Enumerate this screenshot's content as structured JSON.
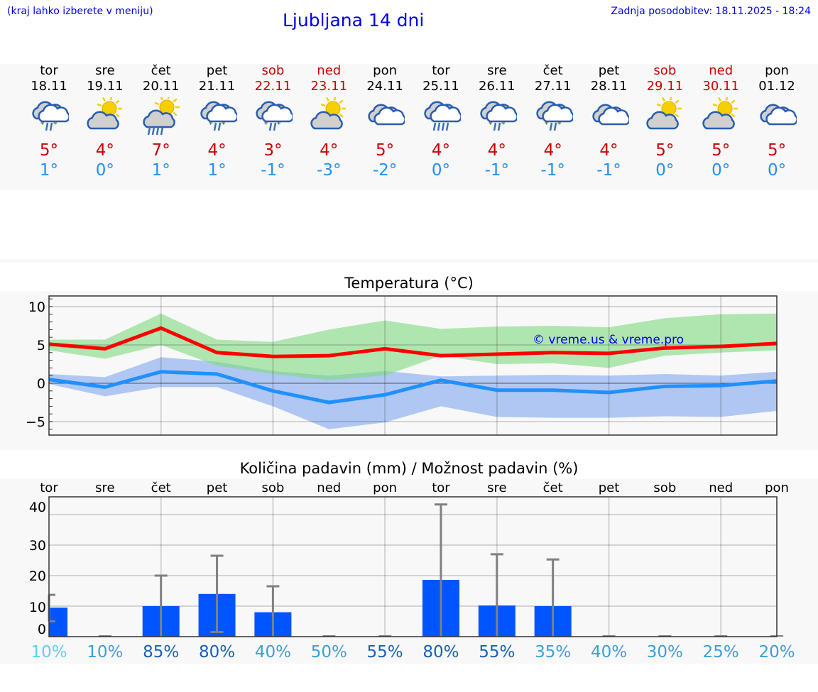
{
  "header": {
    "note": "(kraj lahko izberete v meniju)",
    "title": "Ljubljana 14 dni",
    "updated": "Zadnja posodobitev: 18.11.2025 - 18:24"
  },
  "days": [
    {
      "name": "tor",
      "date": "18.11",
      "icon": "cloud-rain-snow",
      "max": "5°",
      "min": "1°",
      "weekend": false
    },
    {
      "name": "sre",
      "date": "19.11",
      "icon": "partly-sunny",
      "max": "4°",
      "min": "0°",
      "weekend": false
    },
    {
      "name": "čet",
      "date": "20.11",
      "icon": "sun-rain",
      "max": "7°",
      "min": "1°",
      "weekend": false
    },
    {
      "name": "pet",
      "date": "21.11",
      "icon": "cloud-rain-snow",
      "max": "4°",
      "min": "1°",
      "weekend": false
    },
    {
      "name": "sob",
      "date": "22.11",
      "icon": "cloud-rain-snow",
      "max": "3°",
      "min": "-1°",
      "weekend": true
    },
    {
      "name": "ned",
      "date": "23.11",
      "icon": "partly-sunny",
      "max": "4°",
      "min": "-3°",
      "weekend": true
    },
    {
      "name": "pon",
      "date": "24.11",
      "icon": "cloudy",
      "max": "5°",
      "min": "-2°",
      "weekend": false
    },
    {
      "name": "tor",
      "date": "25.11",
      "icon": "cloud-rain",
      "max": "4°",
      "min": "0°",
      "weekend": false
    },
    {
      "name": "sre",
      "date": "26.11",
      "icon": "cloud-rain-snow",
      "max": "4°",
      "min": "-1°",
      "weekend": false
    },
    {
      "name": "čet",
      "date": "27.11",
      "icon": "cloud-rain-snow",
      "max": "4°",
      "min": "-1°",
      "weekend": false
    },
    {
      "name": "pet",
      "date": "28.11",
      "icon": "cloudy",
      "max": "4°",
      "min": "-1°",
      "weekend": false
    },
    {
      "name": "sob",
      "date": "29.11",
      "icon": "partly-sunny",
      "max": "5°",
      "min": "0°",
      "weekend": true
    },
    {
      "name": "ned",
      "date": "30.11",
      "icon": "partly-sunny",
      "max": "5°",
      "min": "0°",
      "weekend": true
    },
    {
      "name": "pon",
      "date": "01.12",
      "icon": "cloudy",
      "max": "5°",
      "min": "0°",
      "weekend": false
    }
  ],
  "chart_data": [
    {
      "type": "line",
      "title": "Temperatura (°C)",
      "ylim": [
        -7,
        11
      ],
      "yticks": [
        "10",
        "5",
        "0",
        "−5"
      ],
      "grid": true,
      "watermark": "© vreme.us & vreme.pro",
      "series": [
        {
          "role": "max",
          "color": "#ff0000",
          "values": [
            5.1,
            4.5,
            7.2,
            4.0,
            3.5,
            3.6,
            4.5,
            3.6,
            3.8,
            4.0,
            3.9,
            4.6,
            4.8,
            5.2
          ]
        },
        {
          "role": "min",
          "color": "#1e90ff",
          "values": [
            0.5,
            -0.5,
            1.5,
            1.2,
            -1.0,
            -2.5,
            -1.5,
            0.4,
            -0.9,
            -0.9,
            -1.2,
            -0.4,
            -0.3,
            0.3
          ]
        },
        {
          "role": "max-range",
          "color": "#7fdb7f",
          "upper": [
            5.7,
            5.7,
            9.1,
            5.7,
            5.4,
            7.0,
            8.2,
            7.1,
            7.4,
            7.5,
            7.3,
            8.5,
            9.0,
            9.1
          ],
          "lower": [
            4.3,
            3.2,
            5.0,
            2.3,
            1.2,
            0.4,
            1.0,
            3.6,
            2.5,
            2.6,
            2.0,
            3.6,
            4.0,
            4.3
          ]
        },
        {
          "role": "min-range",
          "color": "#7ea6ee",
          "upper": [
            1.2,
            0.8,
            3.4,
            2.8,
            1.6,
            1.0,
            1.6,
            0.9,
            1.0,
            1.1,
            1.0,
            1.2,
            1.0,
            1.5
          ],
          "lower": [
            -0.1,
            -1.7,
            -0.5,
            -0.5,
            -3.0,
            -6.0,
            -5.1,
            -3.0,
            -4.4,
            -4.5,
            -4.5,
            -4.3,
            -4.4,
            -3.6
          ]
        }
      ]
    },
    {
      "type": "bar",
      "title": "Količina padavin (mm) / Možnost padavin (%)",
      "ylim": [
        -3,
        43
      ],
      "yticks": [
        "40",
        "30",
        "20",
        "10",
        "0"
      ],
      "grid": true,
      "categories": [
        "tor",
        "sre",
        "čet",
        "pet",
        "sob",
        "ned",
        "pon",
        "tor",
        "sre",
        "čet",
        "pet",
        "sob",
        "ned",
        "pon"
      ],
      "values": [
        9.5,
        0,
        10,
        14,
        8,
        0,
        0,
        18.6,
        10.2,
        10,
        0,
        0,
        0,
        0
      ],
      "range_low": [
        5,
        0,
        0,
        1.5,
        0,
        0,
        0,
        0,
        0,
        0,
        0,
        0,
        0,
        0
      ],
      "range_high": [
        13.7,
        0,
        20,
        26.5,
        16.5,
        0,
        0,
        43.3,
        27,
        25.3,
        0,
        0,
        0,
        0
      ],
      "bar_color": "#0055ff",
      "probability": [
        {
          "label": "10%",
          "color": "#5ad4e8"
        },
        {
          "label": "10%",
          "color": "#3aa0d8"
        },
        {
          "label": "85%",
          "color": "#1a60b8"
        },
        {
          "label": "80%",
          "color": "#1a60b8"
        },
        {
          "label": "40%",
          "color": "#3aa0d8"
        },
        {
          "label": "50%",
          "color": "#3aa0d8"
        },
        {
          "label": "55%",
          "color": "#1a60b8"
        },
        {
          "label": "80%",
          "color": "#1a60b8"
        },
        {
          "label": "55%",
          "color": "#1a60b8"
        },
        {
          "label": "35%",
          "color": "#3aa0d8"
        },
        {
          "label": "40%",
          "color": "#3aa0d8"
        },
        {
          "label": "30%",
          "color": "#3aa0d8"
        },
        {
          "label": "25%",
          "color": "#3aa0d8"
        },
        {
          "label": "20%",
          "color": "#3aa0d8"
        }
      ]
    }
  ]
}
